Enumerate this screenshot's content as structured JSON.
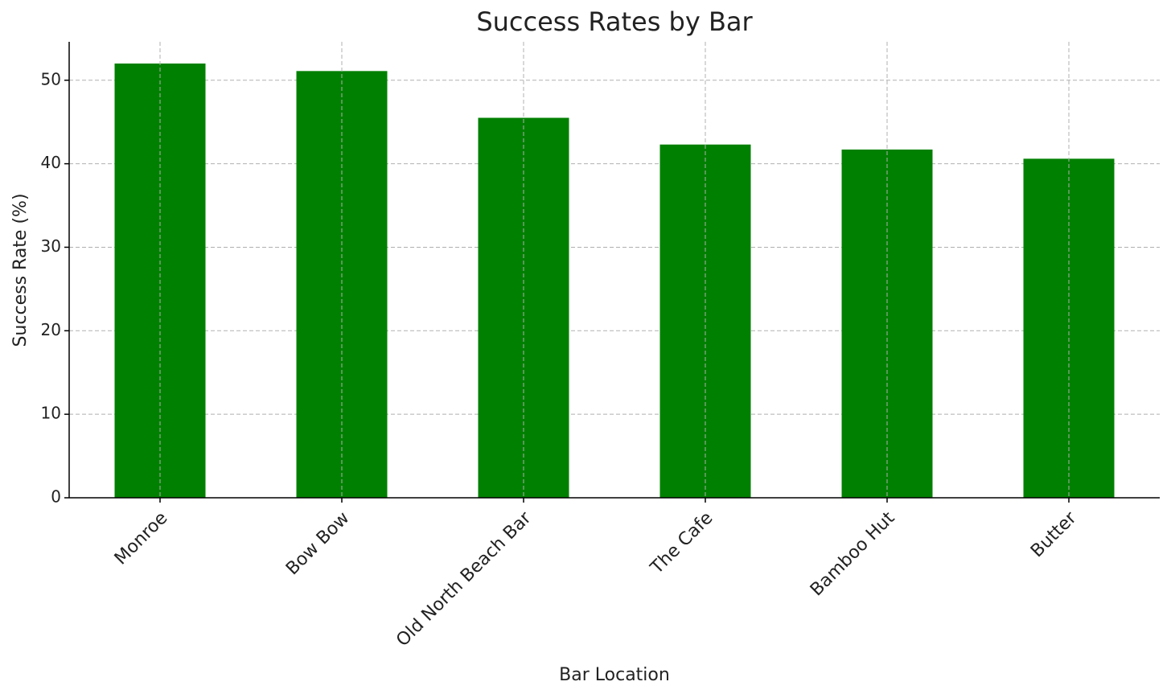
{
  "chart_data": {
    "type": "bar",
    "title": "Success Rates by Bar",
    "x_label": "Bar Location",
    "y_label": "Success Rate (%)",
    "categories": [
      "Monroe",
      "Bow Bow",
      "Old North Beach Bar",
      "The Cafe",
      "Bamboo Hut",
      "Butter"
    ],
    "values": [
      52.0,
      51.1,
      45.5,
      42.3,
      41.7,
      40.6
    ],
    "color": "#008000",
    "ylim": [
      0,
      54.6
    ],
    "yticks": [
      0,
      10,
      20,
      30,
      40,
      50
    ],
    "grid": true
  }
}
